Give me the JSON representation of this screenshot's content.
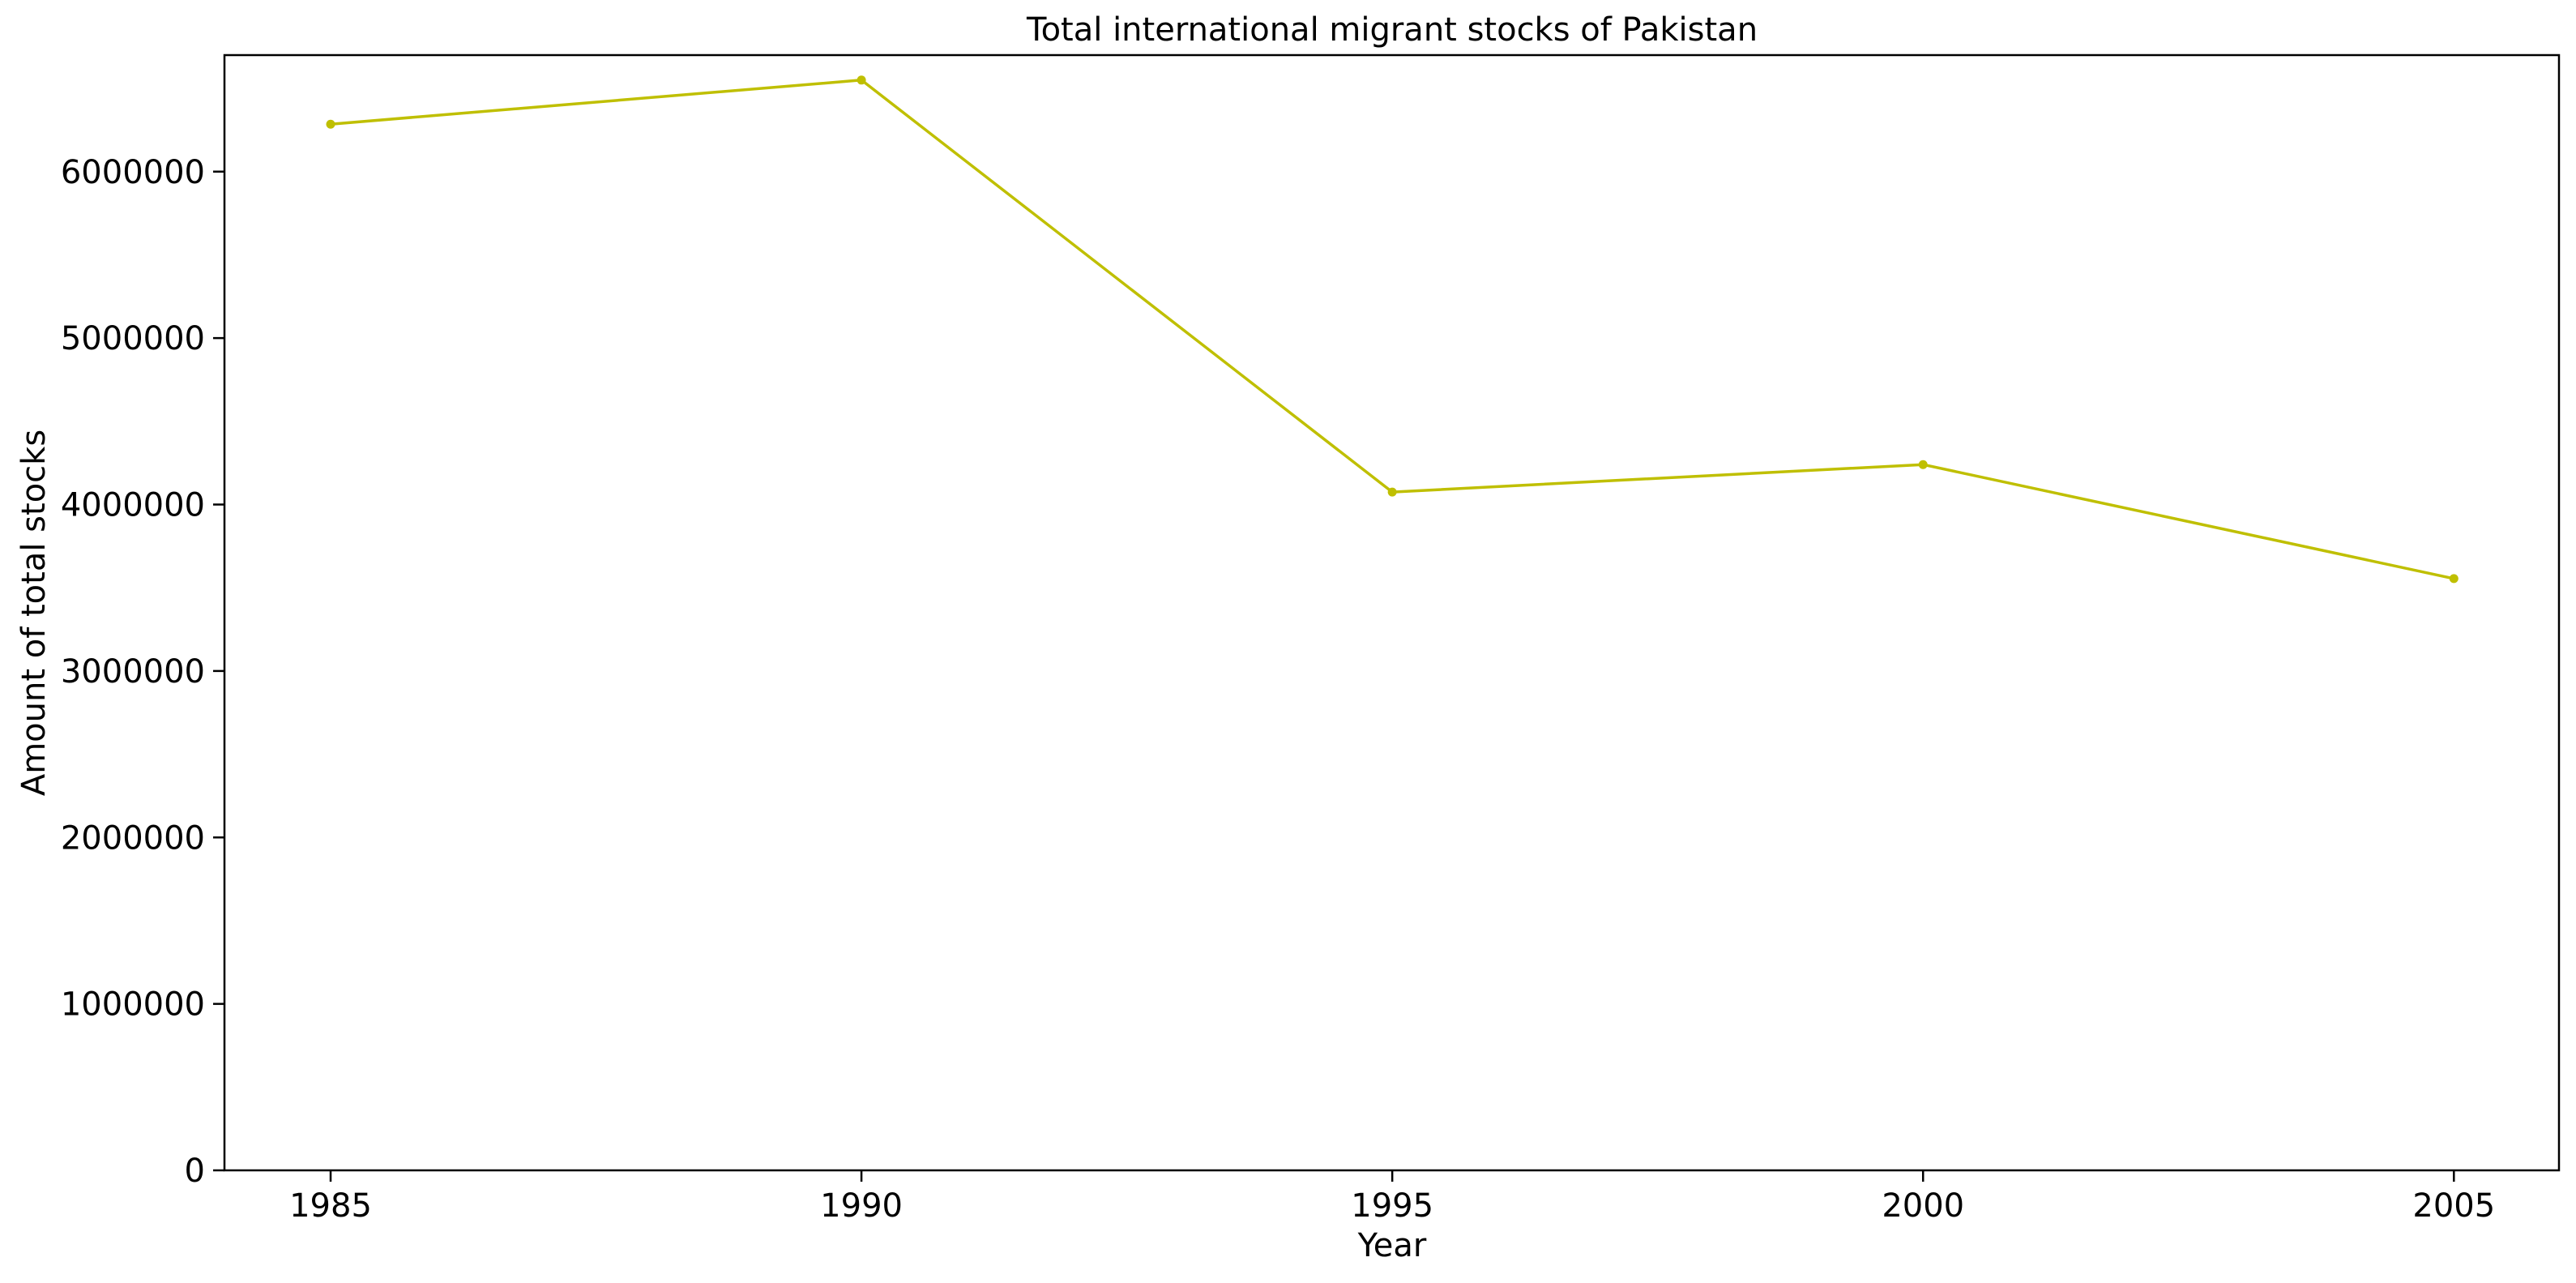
{
  "chart_data": {
    "type": "line",
    "title": "Total international migrant stocks of Pakistan",
    "xlabel": "Year",
    "ylabel": "Amount of total stocks",
    "x": [
      1985,
      1990,
      1995,
      2000,
      2005
    ],
    "series": [
      {
        "values": [
          6285000,
          6550000,
          4075000,
          4240000,
          3555000
        ],
        "color": "#bfbf00",
        "marker": "circle"
      }
    ],
    "x_ticks": [
      "1985",
      "1990",
      "1995",
      "2000",
      "2005"
    ],
    "y_ticks": [
      0,
      1000000,
      2000000,
      3000000,
      4000000,
      5000000,
      6000000
    ],
    "y_tick_labels": [
      "0",
      "1000000",
      "2000000",
      "3000000",
      "4000000",
      "5000000",
      "6000000"
    ],
    "xlim": [
      1984,
      2005.99
    ],
    "ylim": [
      0,
      6700000
    ],
    "grid": false,
    "legend": "none"
  }
}
